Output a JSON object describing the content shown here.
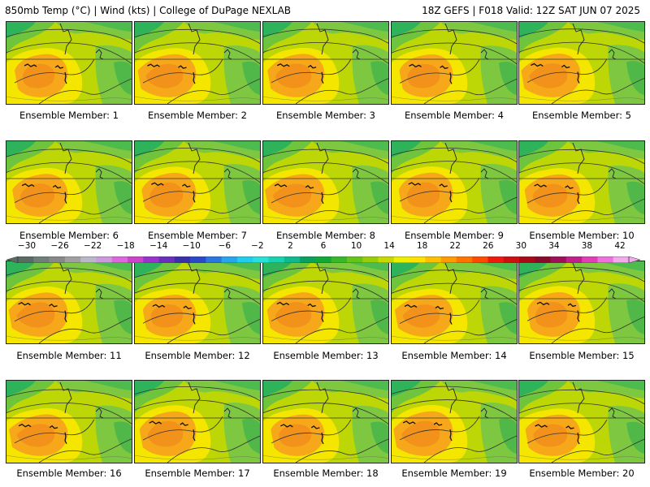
{
  "header": {
    "left": "850mb Temp (°C) | Wind (kts) | College of DuPage NEXLAB",
    "right": "18Z GEFS | F018 Valid: 12Z SAT JUN 07 2025"
  },
  "panels": [
    {
      "label": "Ensemble Member: 1"
    },
    {
      "label": "Ensemble Member: 2"
    },
    {
      "label": "Ensemble Member: 3"
    },
    {
      "label": "Ensemble Member: 4"
    },
    {
      "label": "Ensemble Member: 5"
    },
    {
      "label": "Ensemble Member: 6"
    },
    {
      "label": "Ensemble Member: 7"
    },
    {
      "label": "Ensemble Member: 8"
    },
    {
      "label": "Ensemble Member: 9"
    },
    {
      "label": "Ensemble Member: 10"
    },
    {
      "label": "Ensemble Member: 11"
    },
    {
      "label": "Ensemble Member: 12"
    },
    {
      "label": "Ensemble Member: 13"
    },
    {
      "label": "Ensemble Member: 14"
    },
    {
      "label": "Ensemble Member: 15"
    },
    {
      "label": "Ensemble Member: 16"
    },
    {
      "label": "Ensemble Member: 17"
    },
    {
      "label": "Ensemble Member: 18"
    },
    {
      "label": "Ensemble Member: 19"
    },
    {
      "label": "Ensemble Member: 20"
    }
  ],
  "colorbar": {
    "tick_labels": [
      "−30",
      "−26",
      "−22",
      "−18",
      "−14",
      "−10",
      "−6",
      "−2",
      "2",
      "6",
      "10",
      "14",
      "18",
      "22",
      "26",
      "30",
      "34",
      "38",
      "42"
    ],
    "colors": [
      "#5a6b62",
      "#6f7f78",
      "#888888",
      "#a0a0a0",
      "#b8b8c8",
      "#cc99dd",
      "#dd66dd",
      "#cc44cc",
      "#9933cc",
      "#6a2fbf",
      "#3b2fae",
      "#2a49c8",
      "#2a77e0",
      "#28a6ec",
      "#22ccee",
      "#28e0d8",
      "#1ad0b0",
      "#10b890",
      "#0aa060",
      "#12a838",
      "#38b828",
      "#66c418",
      "#99cc0a",
      "#c8d800",
      "#eeee00",
      "#ffe000",
      "#ffbf00",
      "#ff9a00",
      "#ff7400",
      "#ff4a00",
      "#ee1a10",
      "#cc1010",
      "#aa0a18",
      "#8a0a2a",
      "#a0105a",
      "#c0208a",
      "#de40b8",
      "#f070de",
      "#f4a8ee"
    ]
  },
  "colors": {
    "temp_cool_green": "#2fb35a",
    "temp_green": "#7dc840",
    "temp_yellow_green": "#c8d800",
    "temp_yellow": "#f5e600",
    "temp_orange": "#f7a81a"
  }
}
